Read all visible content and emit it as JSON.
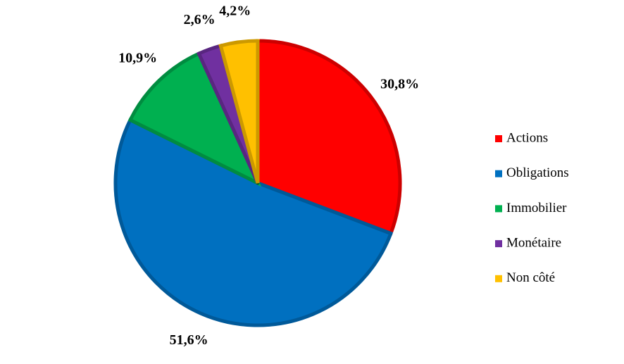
{
  "chart_data": {
    "type": "pie",
    "categories": [
      "Actions",
      "Obligations",
      "Immobilier",
      "Monétaire",
      "Non côté"
    ],
    "values": [
      30.8,
      51.6,
      10.9,
      2.6,
      4.2
    ],
    "value_labels": [
      "30,8%",
      "51,6%",
      "10,9%",
      "2,6%",
      "4,2%"
    ],
    "colors": [
      "#ff0000",
      "#0070c0",
      "#00b050",
      "#7030a0",
      "#ffc000"
    ],
    "legend": "right"
  }
}
